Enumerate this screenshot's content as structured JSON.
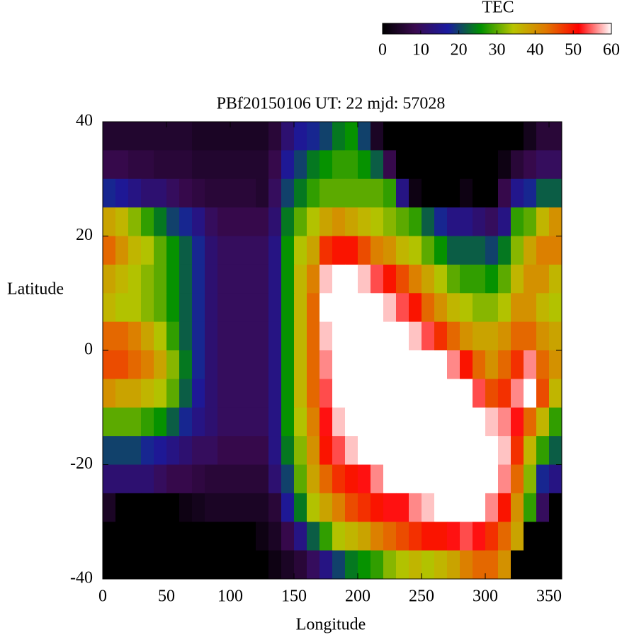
{
  "chart_data": {
    "type": "heatmap",
    "title": "PBf20150106  UT: 22  mjd: 57028",
    "xlabel": "Longitude",
    "ylabel": "Latitude",
    "colorbar_label": "TEC",
    "xlim": [
      0,
      360
    ],
    "ylim": [
      -40,
      40
    ],
    "xticks": [
      0,
      50,
      100,
      150,
      200,
      250,
      300,
      350
    ],
    "yticks": [
      -40,
      -20,
      0,
      20,
      40
    ],
    "clim": [
      0,
      60
    ],
    "cticks": [
      0,
      10,
      20,
      30,
      40,
      50,
      60
    ],
    "colormap": [
      "#000000",
      "#3a0a50",
      "#1a1aa0",
      "#009000",
      "#b8c400",
      "#e07800",
      "#ff0000",
      "#ffffff"
    ],
    "x": [
      5,
      15,
      25,
      35,
      45,
      55,
      65,
      75,
      85,
      95,
      105,
      115,
      125,
      135,
      145,
      155,
      165,
      175,
      185,
      195,
      205,
      215,
      225,
      235,
      245,
      255,
      265,
      275,
      285,
      295,
      305,
      315,
      325,
      335,
      345,
      355
    ],
    "y": [
      37.5,
      32.5,
      27.5,
      22.5,
      17.5,
      12.5,
      7.5,
      2.5,
      -2.5,
      -7.5,
      -12.5,
      -17.5,
      -22.5,
      -27.5,
      -32.5,
      -37.5
    ],
    "z": [
      [
        5,
        5,
        5,
        5,
        5,
        5,
        5,
        4,
        4,
        4,
        4,
        4,
        4,
        6,
        12,
        16,
        18,
        20,
        24,
        26,
        20,
        4,
        0,
        0,
        0,
        0,
        0,
        0,
        0,
        0,
        0,
        0,
        0,
        3,
        6,
        6
      ],
      [
        8,
        8,
        7,
        7,
        6,
        6,
        6,
        5,
        5,
        5,
        5,
        5,
        5,
        8,
        16,
        20,
        24,
        26,
        28,
        28,
        26,
        22,
        8,
        0,
        0,
        0,
        0,
        0,
        0,
        0,
        0,
        2,
        6,
        8,
        10,
        10
      ],
      [
        18,
        16,
        14,
        12,
        12,
        10,
        8,
        7,
        6,
        6,
        6,
        6,
        5,
        10,
        20,
        24,
        28,
        30,
        30,
        30,
        30,
        30,
        28,
        14,
        2,
        0,
        0,
        0,
        2,
        0,
        0,
        8,
        15,
        18,
        22,
        22
      ],
      [
        38,
        36,
        32,
        28,
        24,
        20,
        18,
        14,
        10,
        8,
        8,
        8,
        8,
        12,
        24,
        30,
        34,
        38,
        40,
        38,
        36,
        34,
        32,
        30,
        28,
        22,
        18,
        14,
        14,
        12,
        10,
        14,
        28,
        30,
        36,
        40
      ],
      [
        44,
        40,
        36,
        34,
        30,
        26,
        22,
        18,
        12,
        10,
        10,
        10,
        10,
        14,
        26,
        34,
        38,
        48,
        50,
        50,
        46,
        42,
        40,
        36,
        34,
        30,
        26,
        22,
        22,
        22,
        20,
        24,
        32,
        38,
        42,
        42
      ],
      [
        38,
        36,
        34,
        32,
        30,
        26,
        22,
        18,
        12,
        10,
        10,
        10,
        10,
        14,
        26,
        36,
        42,
        58,
        60,
        60,
        58,
        54,
        50,
        46,
        42,
        38,
        34,
        30,
        28,
        28,
        26,
        30,
        36,
        40,
        40,
        36
      ],
      [
        36,
        34,
        34,
        32,
        30,
        26,
        22,
        18,
        12,
        10,
        10,
        10,
        10,
        14,
        26,
        36,
        44,
        60,
        60,
        60,
        60,
        60,
        58,
        54,
        50,
        44,
        40,
        36,
        34,
        32,
        32,
        34,
        40,
        40,
        36,
        34
      ],
      [
        44,
        44,
        42,
        38,
        34,
        28,
        22,
        18,
        12,
        10,
        10,
        10,
        10,
        14,
        26,
        36,
        44,
        58,
        60,
        60,
        60,
        60,
        60,
        60,
        58,
        54,
        48,
        44,
        40,
        38,
        38,
        40,
        44,
        44,
        40,
        38
      ],
      [
        46,
        46,
        44,
        42,
        38,
        32,
        24,
        18,
        12,
        10,
        10,
        10,
        10,
        14,
        26,
        36,
        44,
        56,
        60,
        60,
        60,
        60,
        60,
        60,
        60,
        60,
        60,
        56,
        50,
        44,
        40,
        44,
        48,
        56,
        44,
        40
      ],
      [
        40,
        38,
        38,
        36,
        34,
        30,
        22,
        16,
        12,
        10,
        10,
        10,
        10,
        14,
        26,
        36,
        44,
        54,
        60,
        60,
        60,
        60,
        60,
        60,
        60,
        60,
        60,
        60,
        60,
        54,
        46,
        48,
        56,
        60,
        46,
        36
      ],
      [
        30,
        30,
        30,
        28,
        26,
        22,
        18,
        14,
        12,
        10,
        10,
        10,
        10,
        14,
        26,
        34,
        42,
        52,
        58,
        60,
        60,
        60,
        60,
        60,
        60,
        60,
        60,
        60,
        60,
        60,
        58,
        56,
        52,
        44,
        36,
        28
      ],
      [
        20,
        20,
        20,
        18,
        16,
        14,
        12,
        10,
        10,
        8,
        8,
        8,
        8,
        14,
        24,
        32,
        40,
        50,
        54,
        58,
        60,
        60,
        60,
        60,
        60,
        60,
        60,
        60,
        60,
        60,
        60,
        58,
        48,
        36,
        28,
        22
      ],
      [
        12,
        12,
        12,
        12,
        10,
        8,
        8,
        7,
        6,
        6,
        6,
        6,
        6,
        12,
        20,
        30,
        38,
        44,
        48,
        50,
        52,
        56,
        60,
        60,
        60,
        60,
        60,
        60,
        60,
        60,
        60,
        56,
        44,
        32,
        18,
        14
      ],
      [
        4,
        0,
        0,
        0,
        0,
        0,
        2,
        3,
        4,
        4,
        4,
        4,
        4,
        6,
        16,
        24,
        34,
        38,
        42,
        46,
        48,
        50,
        52,
        52,
        56,
        58,
        60,
        60,
        60,
        60,
        56,
        50,
        40,
        28,
        10,
        0
      ],
      [
        0,
        0,
        0,
        0,
        0,
        0,
        0,
        0,
        0,
        0,
        0,
        0,
        2,
        4,
        8,
        14,
        22,
        28,
        34,
        36,
        38,
        42,
        44,
        46,
        48,
        50,
        50,
        52,
        54,
        52,
        48,
        44,
        38,
        0,
        0,
        0
      ],
      [
        0,
        0,
        0,
        0,
        0,
        0,
        0,
        0,
        0,
        0,
        0,
        0,
        0,
        2,
        4,
        6,
        10,
        14,
        20,
        24,
        26,
        28,
        32,
        34,
        36,
        34,
        36,
        38,
        42,
        44,
        44,
        40,
        0,
        0,
        0,
        0
      ]
    ]
  }
}
